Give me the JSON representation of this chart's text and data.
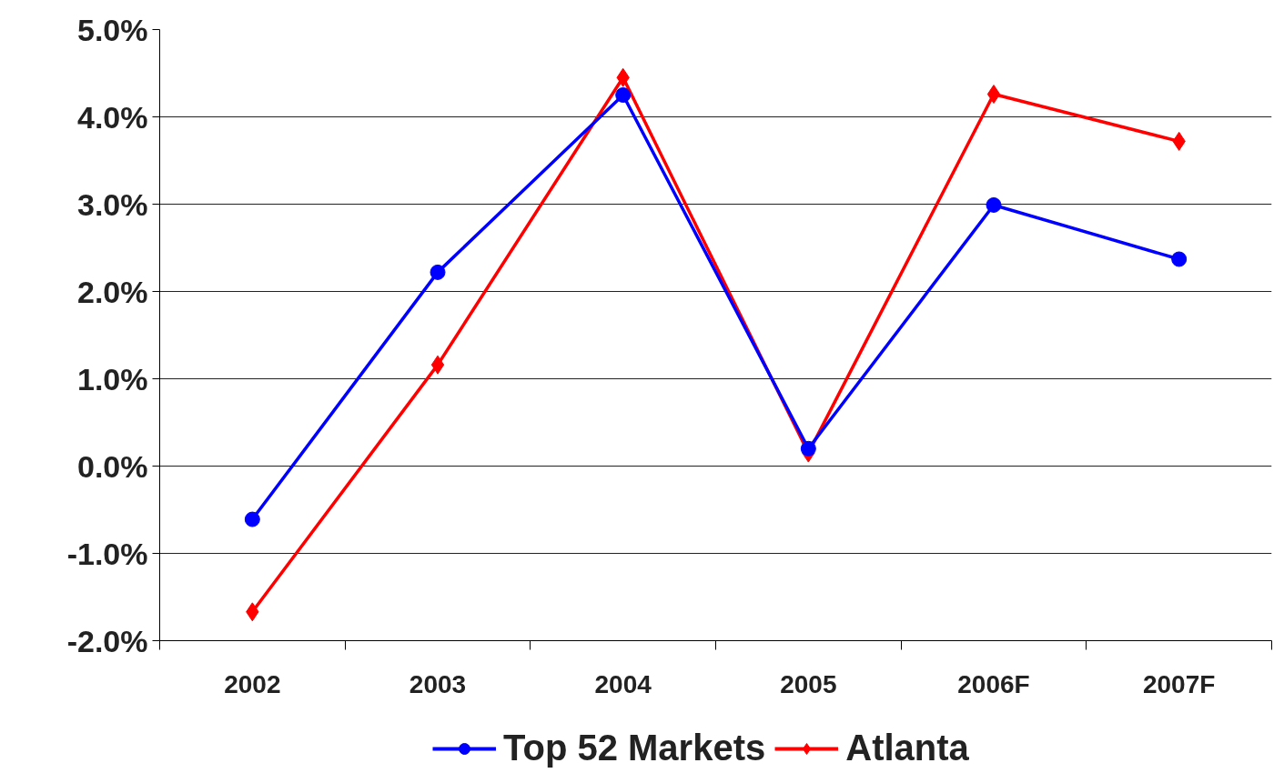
{
  "chart_data": {
    "type": "line",
    "categories": [
      "2002",
      "2003",
      "2004",
      "2005",
      "2006F",
      "2007F"
    ],
    "series": [
      {
        "name": "Top 52 Markets",
        "color": "#0000ff",
        "marker": "circle",
        "values": [
          -0.61,
          2.22,
          4.25,
          0.2,
          2.99,
          2.37
        ]
      },
      {
        "name": "Atlanta",
        "color": "#ff0000",
        "marker": "diamond",
        "values": [
          -1.67,
          1.16,
          4.45,
          0.15,
          4.26,
          3.72
        ]
      }
    ],
    "ylim": [
      -2,
      5
    ],
    "yticks": [
      {
        "value": -2,
        "label": "-2.0%"
      },
      {
        "value": -1,
        "label": "-1.0%"
      },
      {
        "value": 0,
        "label": "0.0%"
      },
      {
        "value": 1,
        "label": "1.0%"
      },
      {
        "value": 2,
        "label": "2.0%"
      },
      {
        "value": 3,
        "label": "3.0%"
      },
      {
        "value": 4,
        "label": "4.0%"
      },
      {
        "value": 5,
        "label": "5.0%"
      }
    ],
    "grid": "y",
    "legend": "bottom",
    "line_style": "solid"
  }
}
